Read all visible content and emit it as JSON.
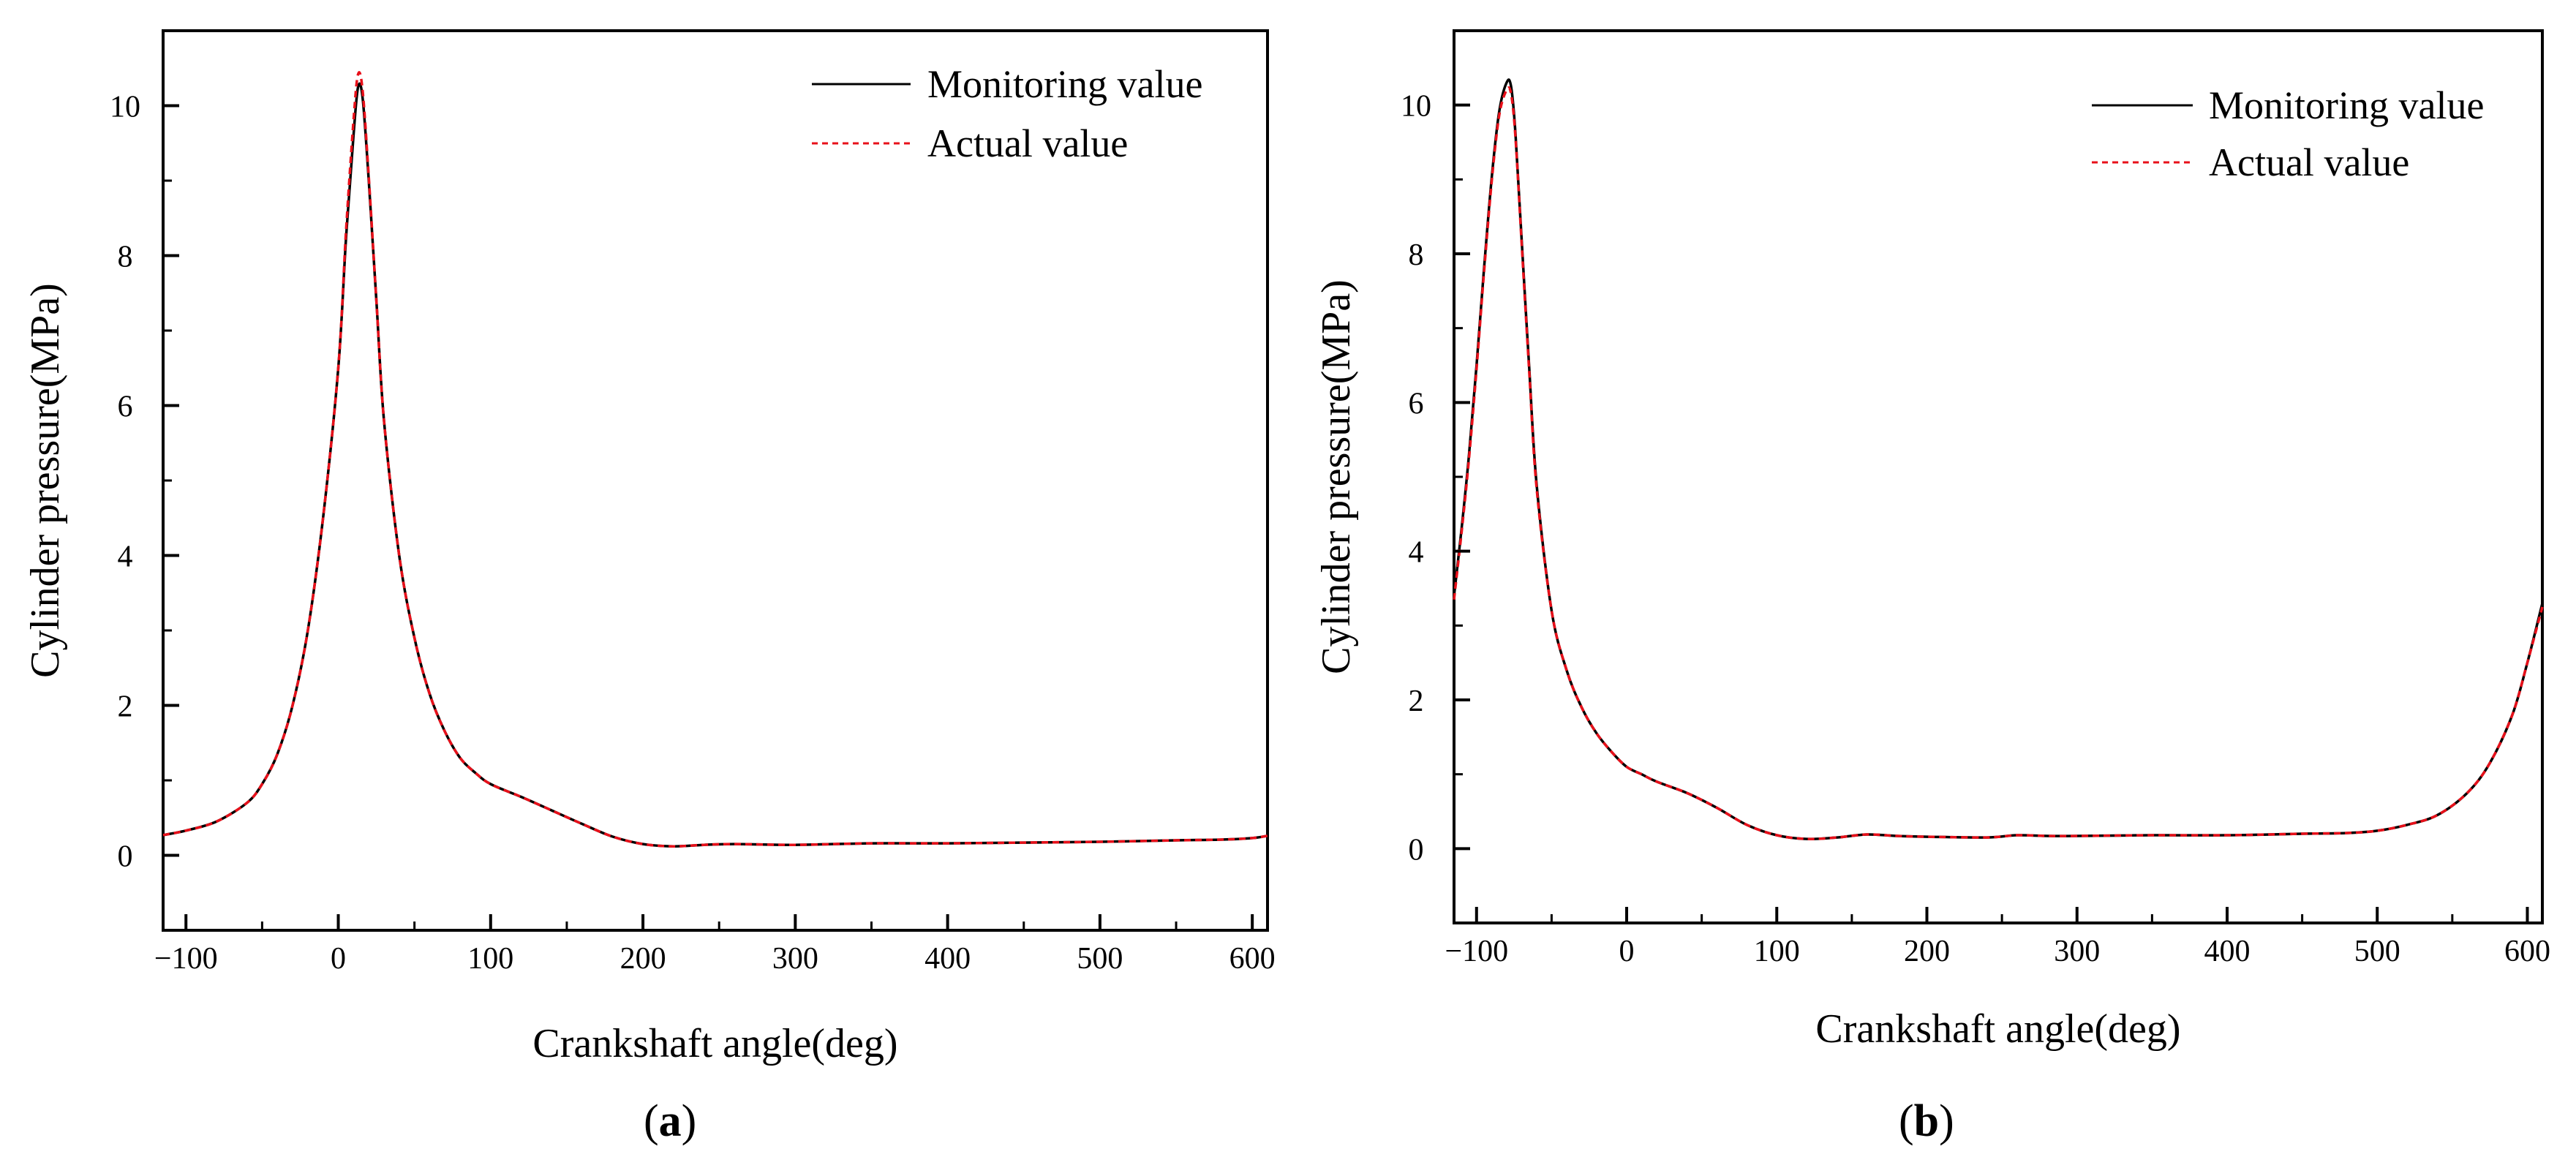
{
  "chart_data": [
    {
      "type": "line",
      "panel_label": "a",
      "xlabel": "Crankshaft angle(deg)",
      "ylabel": "Cylinder pressure(MPa)",
      "xlim": [
        -115,
        610
      ],
      "ylim": [
        -1,
        11
      ],
      "xticks": [
        -100,
        0,
        100,
        200,
        300,
        400,
        500,
        600
      ],
      "yticks": [
        0,
        2,
        4,
        6,
        8,
        10
      ],
      "xtick_labels": [
        "−100",
        "0",
        "100",
        "200",
        "300",
        "400",
        "500",
        "600"
      ],
      "ytick_labels": [
        "0",
        "2",
        "4",
        "6",
        "8",
        "10"
      ],
      "legend_position": "top-right",
      "series": [
        {
          "name": "Monitoring value",
          "color": "#000000",
          "style": "solid",
          "x": [
            -115,
            -100,
            -80,
            -60,
            -50,
            -40,
            -30,
            -20,
            -10,
            0,
            5,
            10,
            13,
            16,
            20,
            25,
            30,
            40,
            50,
            60,
            70,
            80,
            90,
            100,
            120,
            140,
            160,
            180,
            200,
            220,
            240,
            260,
            300,
            350,
            400,
            450,
            500,
            550,
            580,
            600,
            610
          ],
          "y": [
            0.27,
            0.33,
            0.45,
            0.7,
            0.95,
            1.35,
            2.0,
            3.0,
            4.5,
            6.5,
            8.2,
            9.6,
            10.25,
            10.1,
            9.0,
            7.4,
            5.8,
            4.0,
            2.9,
            2.15,
            1.65,
            1.3,
            1.1,
            0.95,
            0.78,
            0.6,
            0.42,
            0.25,
            0.15,
            0.12,
            0.14,
            0.15,
            0.14,
            0.16,
            0.16,
            0.17,
            0.18,
            0.2,
            0.21,
            0.23,
            0.26
          ]
        },
        {
          "name": "Actual value",
          "color": "#e8101a",
          "style": "dashed",
          "x": [
            -115,
            -100,
            -80,
            -60,
            -50,
            -40,
            -30,
            -20,
            -10,
            0,
            5,
            10,
            13,
            16,
            20,
            25,
            30,
            40,
            50,
            60,
            70,
            80,
            90,
            100,
            120,
            140,
            160,
            180,
            200,
            220,
            240,
            260,
            300,
            350,
            400,
            450,
            500,
            550,
            580,
            600,
            610
          ],
          "y": [
            0.27,
            0.33,
            0.45,
            0.7,
            0.95,
            1.35,
            2.0,
            3.0,
            4.5,
            6.5,
            8.3,
            9.8,
            10.42,
            10.2,
            9.05,
            7.4,
            5.8,
            4.0,
            2.9,
            2.15,
            1.65,
            1.3,
            1.1,
            0.95,
            0.78,
            0.6,
            0.42,
            0.25,
            0.15,
            0.12,
            0.14,
            0.15,
            0.14,
            0.16,
            0.16,
            0.17,
            0.18,
            0.2,
            0.21,
            0.23,
            0.26
          ]
        }
      ]
    },
    {
      "type": "line",
      "panel_label": "b",
      "xlabel": "Crankshaft angle(deg)",
      "ylabel": "Cylinder pressure(MPa)",
      "xlim": [
        -115,
        610
      ],
      "ylim": [
        -1,
        11
      ],
      "xticks": [
        -100,
        0,
        100,
        200,
        300,
        400,
        500,
        600
      ],
      "yticks": [
        0,
        2,
        4,
        6,
        8,
        10
      ],
      "xtick_labels": [
        "−100",
        "0",
        "100",
        "200",
        "300",
        "400",
        "500",
        "600"
      ],
      "ytick_labels": [
        "0",
        "2",
        "4",
        "6",
        "8",
        "10"
      ],
      "legend_position": "top-right",
      "series": [
        {
          "name": "Monitoring value",
          "color": "#000000",
          "style": "solid",
          "x": [
            -115,
            -110,
            -105,
            -100,
            -95,
            -90,
            -85,
            -80,
            -77,
            -74,
            -70,
            -65,
            -60,
            -50,
            -40,
            -30,
            -20,
            -10,
            0,
            10,
            20,
            40,
            60,
            80,
            100,
            120,
            140,
            160,
            180,
            200,
            240,
            260,
            280,
            300,
            350,
            400,
            450,
            480,
            500,
            520,
            540,
            560,
            575,
            590,
            600,
            610
          ],
          "y": [
            3.4,
            4.3,
            5.3,
            6.5,
            7.8,
            9.0,
            9.9,
            10.3,
            10.25,
            9.6,
            8.2,
            6.5,
            4.9,
            3.2,
            2.4,
            1.9,
            1.55,
            1.3,
            1.1,
            1.0,
            0.9,
            0.75,
            0.55,
            0.32,
            0.18,
            0.13,
            0.15,
            0.19,
            0.17,
            0.16,
            0.15,
            0.18,
            0.17,
            0.17,
            0.18,
            0.18,
            0.2,
            0.21,
            0.24,
            0.32,
            0.45,
            0.75,
            1.15,
            1.8,
            2.5,
            3.3
          ]
        },
        {
          "name": "Actual value",
          "color": "#e8101a",
          "style": "dashed",
          "x": [
            -115,
            -110,
            -105,
            -100,
            -95,
            -90,
            -85,
            -80,
            -77,
            -74,
            -70,
            -65,
            -60,
            -50,
            -40,
            -30,
            -20,
            -10,
            0,
            10,
            20,
            40,
            60,
            80,
            100,
            120,
            140,
            160,
            180,
            200,
            240,
            260,
            280,
            300,
            350,
            400,
            450,
            480,
            500,
            520,
            540,
            560,
            575,
            590,
            600,
            610
          ],
          "y": [
            3.35,
            4.25,
            5.25,
            6.45,
            7.75,
            8.95,
            9.85,
            10.2,
            10.15,
            9.55,
            8.15,
            6.45,
            4.85,
            3.2,
            2.4,
            1.9,
            1.55,
            1.3,
            1.1,
            1.0,
            0.9,
            0.75,
            0.55,
            0.32,
            0.18,
            0.13,
            0.15,
            0.19,
            0.17,
            0.16,
            0.15,
            0.18,
            0.17,
            0.17,
            0.18,
            0.18,
            0.2,
            0.21,
            0.24,
            0.32,
            0.45,
            0.75,
            1.15,
            1.8,
            2.5,
            3.25
          ]
        }
      ]
    }
  ]
}
